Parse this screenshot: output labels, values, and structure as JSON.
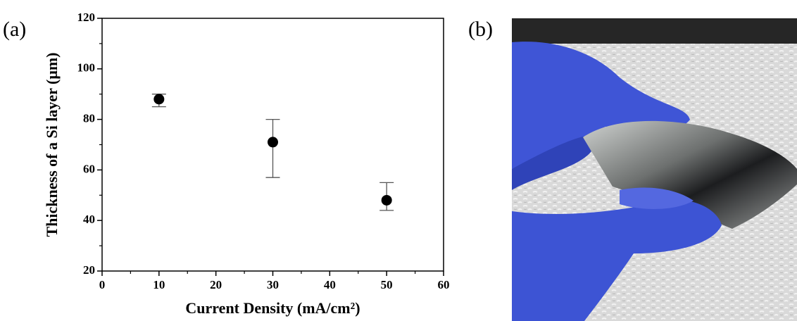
{
  "panel_labels": [
    "(a)",
    "(b)"
  ],
  "chart_data": {
    "type": "scatter",
    "x_label": "Current Density (mA/cm²)",
    "y_label": "Thickness of a Si layer (μm)",
    "x": [
      10,
      30,
      50
    ],
    "values": [
      88,
      71,
      48
    ],
    "yerr_lower": [
      3,
      14,
      4
    ],
    "yerr_upper": [
      2,
      9,
      7
    ],
    "color": "#000000",
    "xlim": [
      0,
      60
    ],
    "xticks": [
      0,
      10,
      20,
      30,
      40,
      50,
      60
    ],
    "xminorticks": [
      5,
      15,
      25,
      35,
      45,
      55
    ],
    "ylim": [
      20,
      120
    ],
    "yticks": [
      20,
      40,
      60,
      80,
      100,
      120
    ],
    "yminorticks": [
      30,
      50,
      70,
      90,
      110
    ],
    "grid": false
  }
}
